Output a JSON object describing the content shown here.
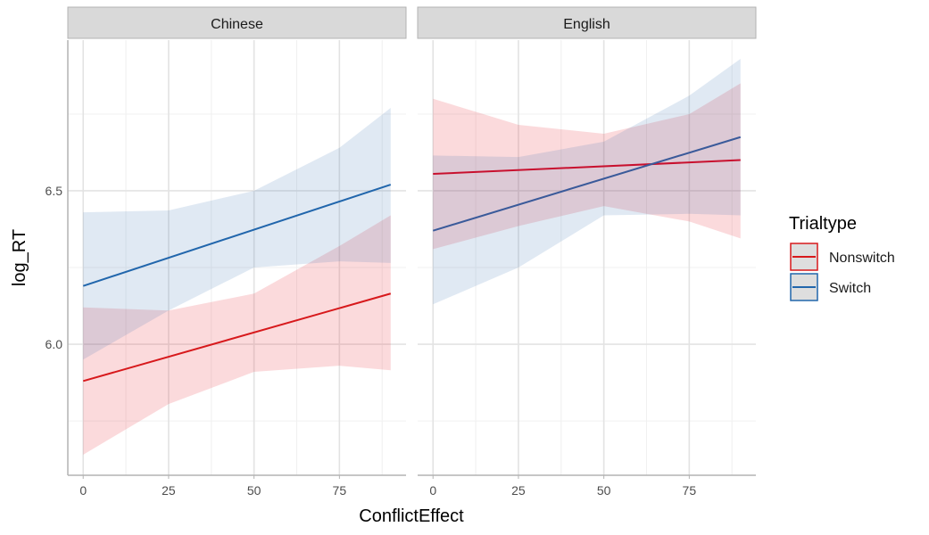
{
  "chart_data": {
    "type": "line",
    "xlabel": "ConflictEffect",
    "ylabel": "log_RT",
    "xlim": [
      -4.5,
      94.5
    ],
    "ylim": [
      5.573,
      6.991
    ],
    "xticks": [
      0,
      25,
      50,
      75
    ],
    "xtick_labels": [
      "0",
      "25",
      "50",
      "75"
    ],
    "yticks": [
      6.0,
      6.5
    ],
    "ytick_labels": [
      "6.0",
      "6.5"
    ],
    "grid": true,
    "legend": {
      "title": "Trialtype",
      "placement": "right"
    },
    "ribbon_x": [
      0,
      25,
      50,
      75,
      90
    ],
    "panels": [
      {
        "strip": "Chinese",
        "series": [
          {
            "name": "Nonswitch",
            "color": "#d7191c",
            "line": [
              [
                0,
                5.88
              ],
              [
                90,
                6.165
              ]
            ],
            "upper": [
              6.12,
              6.11,
              6.165,
              6.32,
              6.42
            ],
            "lower": [
              5.64,
              5.805,
              5.91,
              5.93,
              5.915
            ]
          },
          {
            "name": "Switch",
            "color": "#2166ac",
            "line": [
              [
                0,
                6.19
              ],
              [
                90,
                6.52
              ]
            ],
            "upper": [
              6.43,
              6.436,
              6.5,
              6.64,
              6.77
            ],
            "lower": [
              5.95,
              6.11,
              6.25,
              6.27,
              6.265
            ]
          }
        ]
      },
      {
        "strip": "English",
        "series": [
          {
            "name": "Nonswitch",
            "color": "#c8102e",
            "line": [
              [
                0,
                6.555
              ],
              [
                90,
                6.6
              ]
            ],
            "upper": [
              6.8,
              6.715,
              6.686,
              6.75,
              6.85
            ],
            "lower": [
              6.31,
              6.385,
              6.45,
              6.4,
              6.345
            ]
          },
          {
            "name": "Switch",
            "color": "#3a5a9a",
            "line": [
              [
                0,
                6.37
              ],
              [
                90,
                6.675
              ]
            ],
            "upper": [
              6.615,
              6.61,
              6.66,
              6.81,
              6.93
            ],
            "lower": [
              6.13,
              6.25,
              6.42,
              6.425,
              6.42
            ]
          }
        ]
      }
    ]
  }
}
